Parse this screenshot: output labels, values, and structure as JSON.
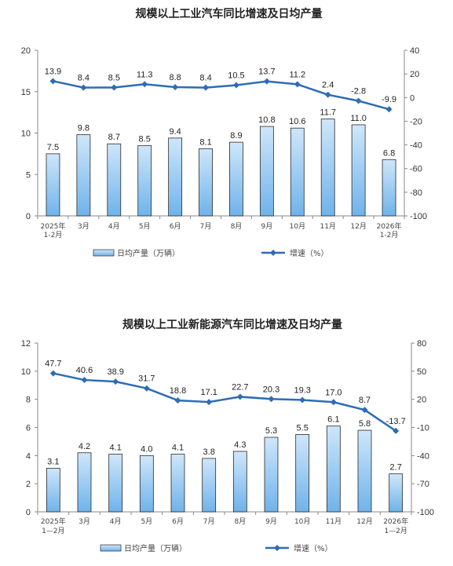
{
  "chart_data": [
    {
      "type": "bar+line",
      "title": "规模以上工业汽车同比增速及日均产量",
      "categories": [
        "2025年\n1-2月",
        "3月",
        "4月",
        "5月",
        "6月",
        "7月",
        "8月",
        "9月",
        "10月",
        "11月",
        "12月",
        "2026年\n1-2月"
      ],
      "series": [
        {
          "name": "日均产量（万辆）",
          "type": "bar",
          "axis": "left",
          "values": [
            7.5,
            9.8,
            8.7,
            8.5,
            9.4,
            8.1,
            8.9,
            10.8,
            10.6,
            11.7,
            11.0,
            6.8
          ]
        },
        {
          "name": "增速（%）",
          "type": "line",
          "axis": "right",
          "values": [
            13.9,
            8.4,
            8.5,
            11.3,
            8.8,
            8.4,
            10.5,
            13.7,
            11.2,
            2.4,
            -2.8,
            -9.9
          ]
        }
      ],
      "left_axis": {
        "ylim": [
          0,
          20
        ],
        "ticks": [
          0,
          5,
          10,
          15,
          20
        ]
      },
      "right_axis": {
        "ylim": [
          -100,
          40
        ],
        "ticks": [
          -100,
          -80,
          -60,
          -40,
          -20,
          0,
          20,
          40
        ]
      },
      "legend_position": "bottom"
    },
    {
      "type": "bar+line",
      "title": "规模以上工业新能源汽车同比增速及日均产量",
      "categories": [
        "2025年\n1—2月",
        "3月",
        "4月",
        "5月",
        "6月",
        "7月",
        "8月",
        "9月",
        "10月",
        "11月",
        "12月",
        "2026年\n1—2月"
      ],
      "series": [
        {
          "name": "日均产量（万辆）",
          "type": "bar",
          "axis": "left",
          "values": [
            3.1,
            4.2,
            4.1,
            4.0,
            4.1,
            3.8,
            4.3,
            5.3,
            5.5,
            6.1,
            5.8,
            2.7
          ]
        },
        {
          "name": "增速（%）",
          "type": "line",
          "axis": "right",
          "values": [
            47.7,
            40.6,
            38.9,
            31.7,
            18.8,
            17.1,
            22.7,
            20.3,
            19.3,
            17.0,
            8.7,
            -13.7
          ]
        }
      ],
      "left_axis": {
        "ylim": [
          0,
          12
        ],
        "ticks": [
          0,
          2,
          4,
          6,
          8,
          10,
          12
        ]
      },
      "right_axis": {
        "ylim": [
          -100,
          80
        ],
        "ticks": [
          -100,
          -70,
          -40,
          -10,
          20,
          50,
          80
        ]
      },
      "legend_position": "bottom"
    }
  ],
  "colors": {
    "bar_fill_top": "#cfe6fa",
    "bar_fill_bottom": "#6fb3ea",
    "bar_stroke": "#2a2a2a",
    "line": "#2e6db4",
    "axis": "#888888"
  }
}
